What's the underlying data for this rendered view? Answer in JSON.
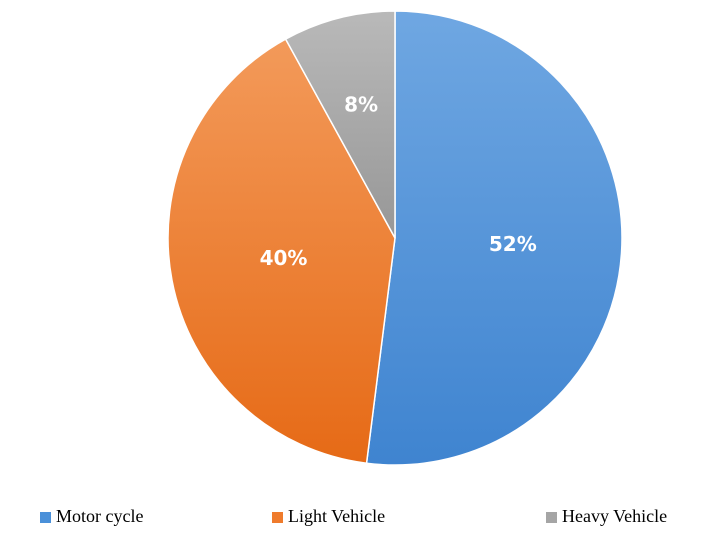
{
  "chart_data": {
    "type": "pie",
    "categories": [
      "Motor cycle",
      "Light Vehicle",
      "Heavy Vehicle"
    ],
    "values": [
      52,
      40,
      8
    ],
    "labels": [
      "52%",
      "40%",
      "8%"
    ],
    "colors": [
      "#4a90d9",
      "#ef7b2c",
      "#a5a5a5"
    ],
    "start_angle_deg": 0,
    "direction": "clockwise",
    "legend_position": "bottom"
  }
}
